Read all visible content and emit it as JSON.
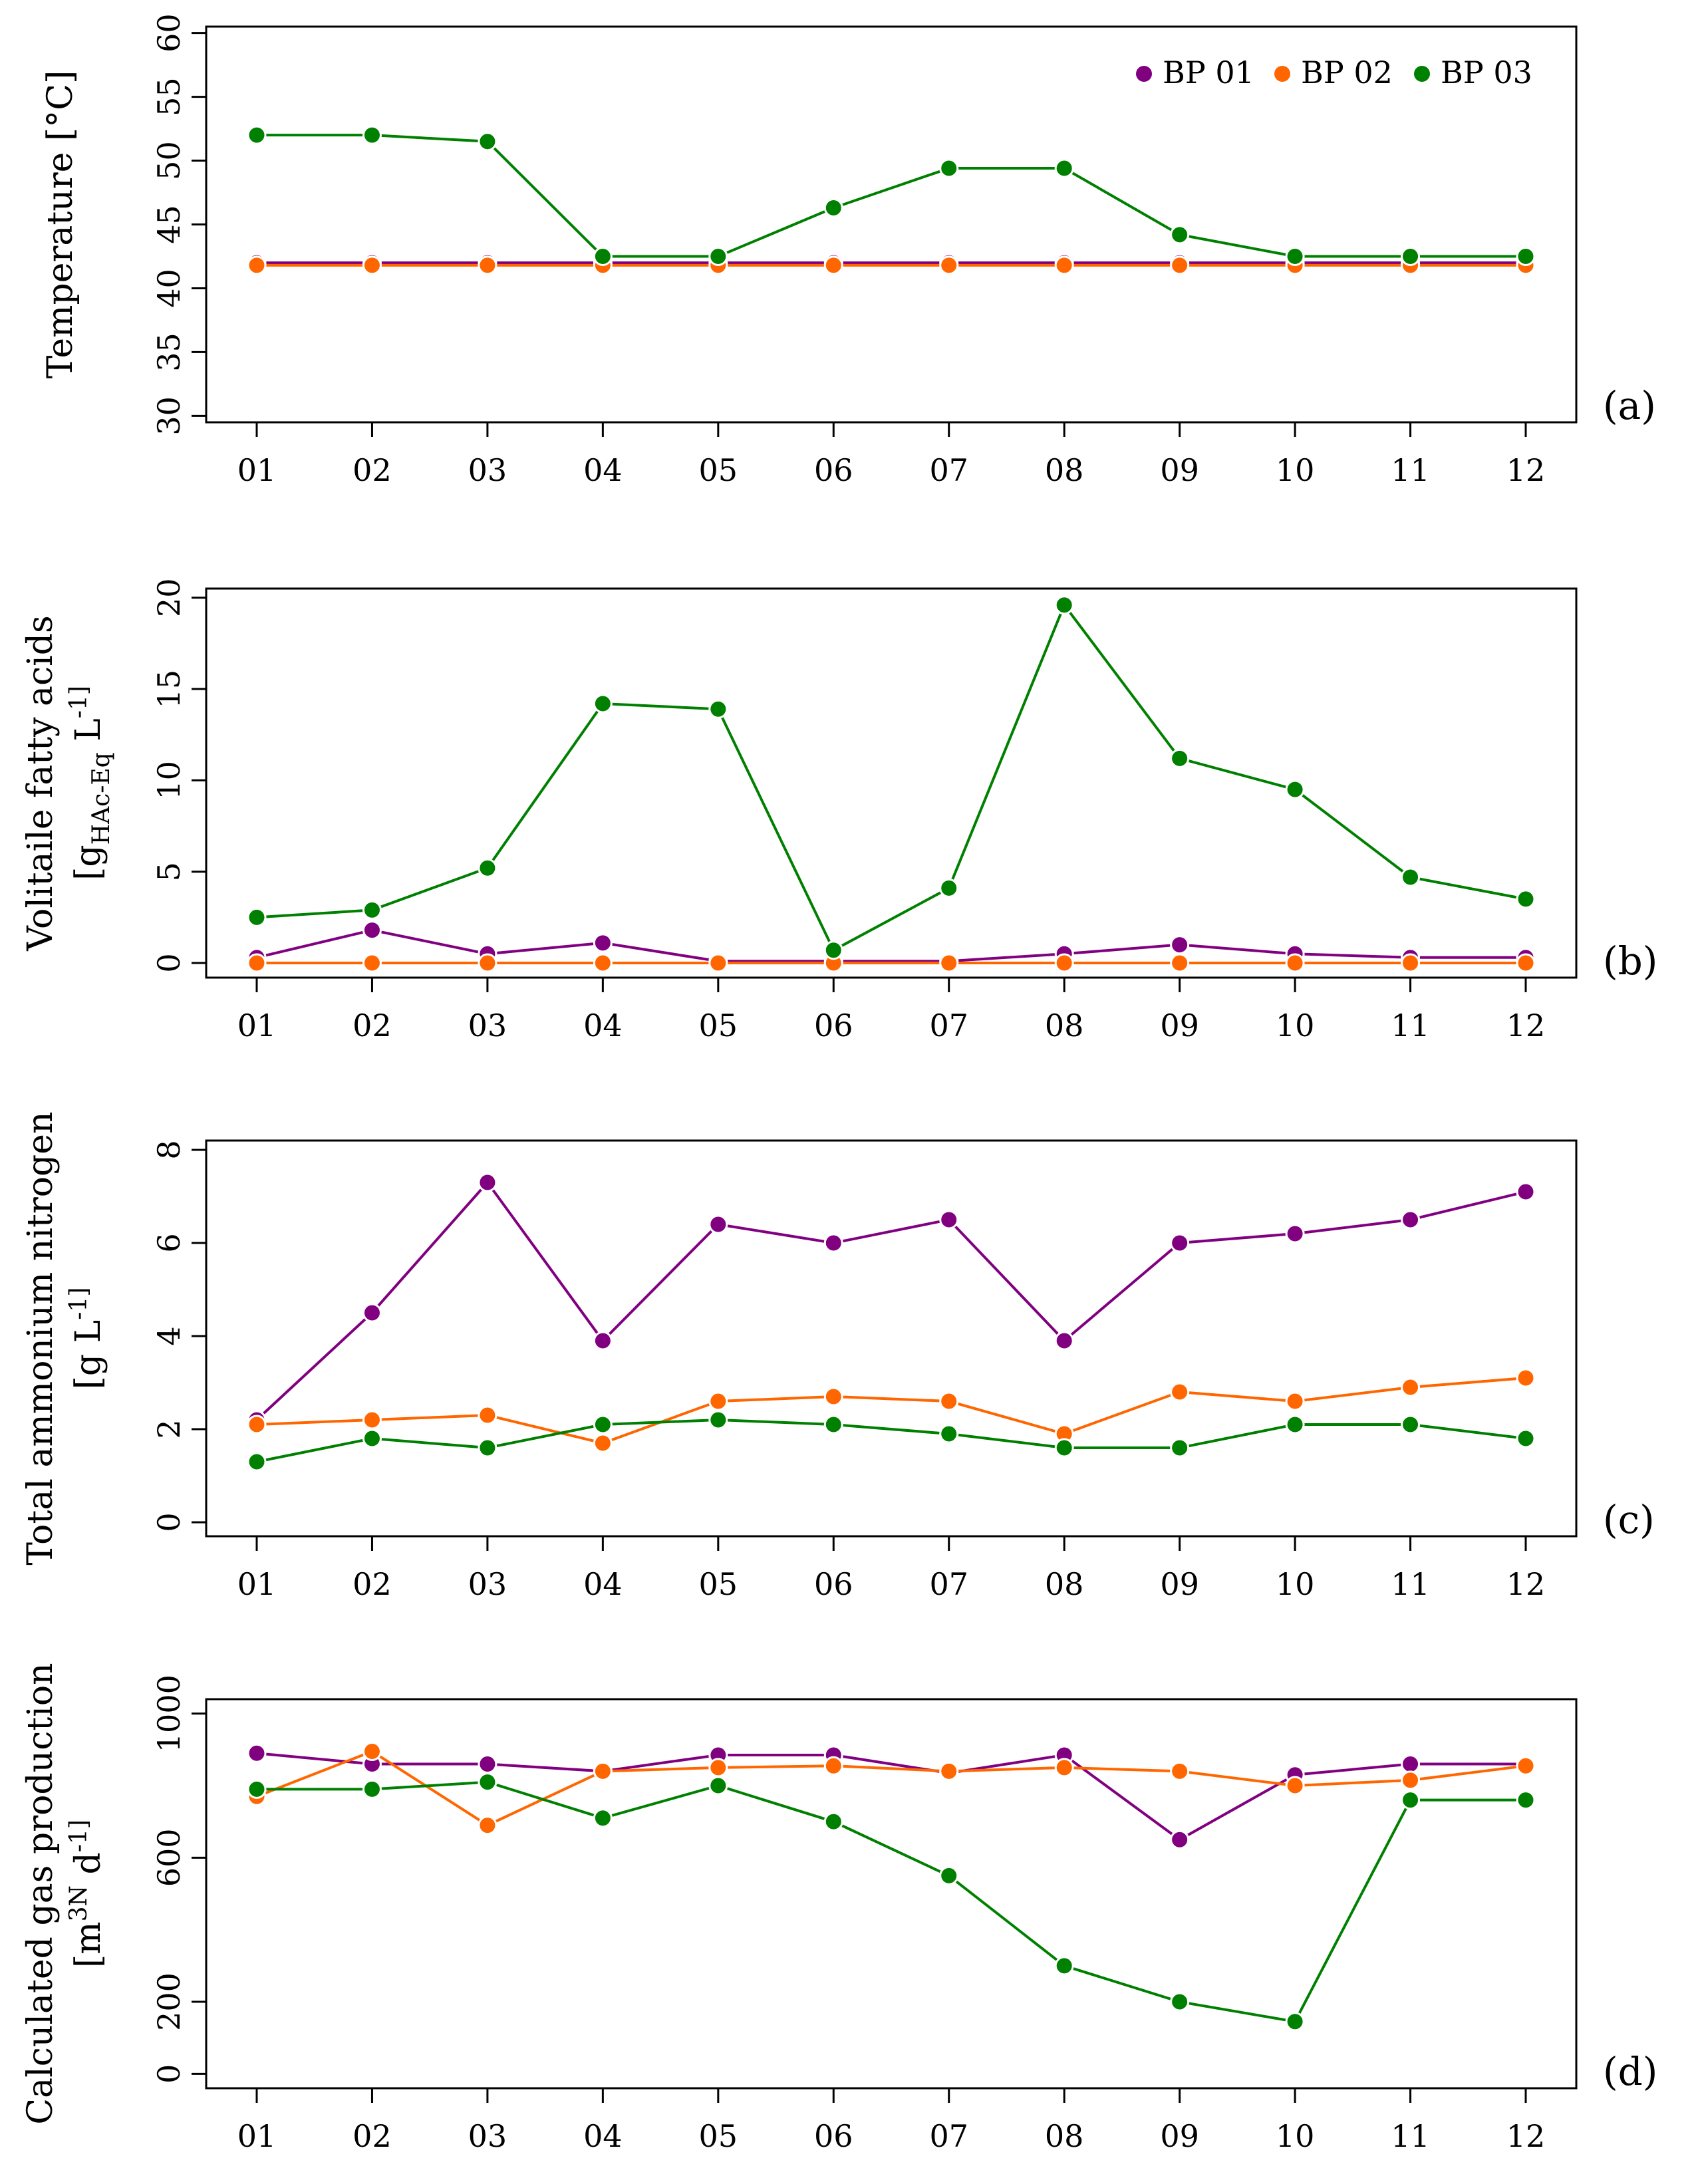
{
  "chart_data": [
    {
      "type": "line",
      "panel_label": "(a)",
      "ylabel_lines": [
        "Temperature [°C]"
      ],
      "x": [
        "01",
        "02",
        "03",
        "04",
        "05",
        "06",
        "07",
        "08",
        "09",
        "10",
        "11",
        "12"
      ],
      "yticks": [
        30,
        35,
        40,
        45,
        50,
        55,
        60
      ],
      "ylim": [
        29.5,
        60.5
      ],
      "legend": {
        "position": "top-right"
      },
      "series": [
        {
          "name": "BP 01",
          "color": "#800080",
          "values": [
            42,
            42,
            42,
            42,
            42,
            42,
            42,
            42,
            42,
            42,
            42,
            42
          ]
        },
        {
          "name": "BP 02",
          "color": "#ff6600",
          "values": [
            41.8,
            41.8,
            41.8,
            41.8,
            41.8,
            41.8,
            41.8,
            41.8,
            41.8,
            41.8,
            41.8,
            41.8
          ]
        },
        {
          "name": "BP 03",
          "color": "#008000",
          "values": [
            52,
            52,
            51.5,
            42.5,
            42.5,
            46.3,
            49.4,
            49.4,
            44.2,
            42.5,
            42.5,
            42.5
          ]
        }
      ]
    },
    {
      "type": "line",
      "panel_label": "(b)",
      "ylabel_lines": [
        "Volitaile fatty acids",
        "[g_HAc-Eq L^-1]"
      ],
      "x": [
        "01",
        "02",
        "03",
        "04",
        "05",
        "06",
        "07",
        "08",
        "09",
        "10",
        "11",
        "12"
      ],
      "yticks": [
        0,
        5,
        10,
        15,
        20
      ],
      "ylim": [
        -0.8,
        20.5
      ],
      "series": [
        {
          "name": "BP 01",
          "color": "#800080",
          "values": [
            0.3,
            1.8,
            0.5,
            1.1,
            0.1,
            0.1,
            0.1,
            0.5,
            1.0,
            0.5,
            0.3,
            0.3
          ]
        },
        {
          "name": "BP 02",
          "color": "#ff6600",
          "values": [
            0,
            0,
            0,
            0,
            0,
            0,
            0,
            0,
            0,
            0,
            0,
            0
          ]
        },
        {
          "name": "BP 03",
          "color": "#008000",
          "values": [
            2.5,
            2.9,
            5.2,
            14.2,
            13.9,
            0.7,
            4.1,
            19.6,
            11.2,
            9.5,
            4.7,
            3.5
          ]
        }
      ]
    },
    {
      "type": "line",
      "panel_label": "(c)",
      "ylabel_lines": [
        "Total ammonium nitrogen",
        "[g L^-1]"
      ],
      "x": [
        "01",
        "02",
        "03",
        "04",
        "05",
        "06",
        "07",
        "08",
        "09",
        "10",
        "11",
        "12"
      ],
      "yticks": [
        0,
        2,
        4,
        6,
        8
      ],
      "ylim": [
        -0.3,
        8.2
      ],
      "series": [
        {
          "name": "BP 01",
          "color": "#800080",
          "values": [
            2.2,
            4.5,
            7.3,
            3.9,
            6.4,
            6.0,
            6.5,
            3.9,
            6.0,
            6.2,
            6.5,
            7.1
          ]
        },
        {
          "name": "BP 02",
          "color": "#ff6600",
          "values": [
            2.1,
            2.2,
            2.3,
            1.7,
            2.6,
            2.7,
            2.6,
            1.9,
            2.8,
            2.6,
            2.9,
            3.1
          ]
        },
        {
          "name": "BP 03",
          "color": "#008000",
          "values": [
            1.3,
            1.8,
            1.6,
            2.1,
            2.2,
            2.1,
            1.9,
            1.6,
            1.6,
            2.1,
            2.1,
            1.8
          ]
        }
      ]
    },
    {
      "type": "line",
      "panel_label": "(d)",
      "ylabel_lines": [
        "Calculated gas production",
        "[m^3N d^-1]"
      ],
      "x": [
        "01",
        "02",
        "03",
        "04",
        "05",
        "06",
        "07",
        "08",
        "09",
        "10",
        "11",
        "12"
      ],
      "yticks": [
        0,
        200,
        600,
        1000
      ],
      "ylim": [
        -40,
        1040
      ],
      "series": [
        {
          "name": "BP 01",
          "color": "#800080",
          "values": [
            890,
            860,
            860,
            840,
            885,
            885,
            835,
            885,
            650,
            830,
            860,
            860
          ]
        },
        {
          "name": "BP 02",
          "color": "#ff6600",
          "values": [
            770,
            895,
            690,
            840,
            850,
            855,
            840,
            850,
            840,
            800,
            815,
            855
          ]
        },
        {
          "name": "BP 03",
          "color": "#008000",
          "values": [
            790,
            790,
            810,
            710,
            800,
            700,
            550,
            300,
            200,
            145,
            760,
            760
          ]
        }
      ]
    }
  ]
}
